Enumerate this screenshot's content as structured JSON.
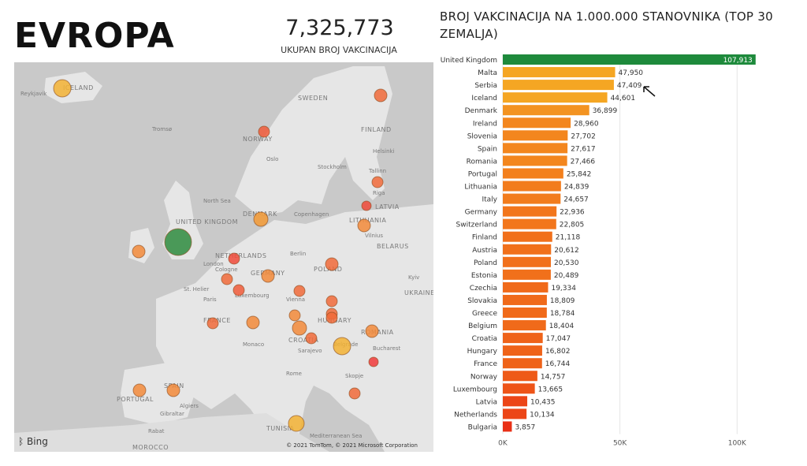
{
  "page": {
    "title": "EVROPA",
    "kpi_value": "7,325,773",
    "kpi_label": "UKUPAN BROJ VAKCINACIJA",
    "chart_title": "BROJ VAKCINACIJA NA 1.000.000 STANOVNIKA (TOP 30 ZEMALJA)"
  },
  "map": {
    "attribution": "Bing",
    "copyright": "© 2021 TomTom, © 2021 Microsoft Corporation",
    "labels": [
      "ICELAND",
      "Reykjavik",
      "SWEDEN",
      "FINLAND",
      "NORWAY",
      "Tromsø",
      "Oslo",
      "Stockholm",
      "Helsinki",
      "Tallinn",
      "Riga",
      "North Sea",
      "DENMARK",
      "Copenhagen",
      "UNITED KINGDOM",
      "NETHERLANDS",
      "London",
      "Berlin",
      "POLAND",
      "BELARUS",
      "GERMANY",
      "St. Helier",
      "Paris",
      "Luxembourg",
      "Vienna",
      "FRANCE",
      "HUNGARY",
      "ROMANIA",
      "Bucharest",
      "CROATIA",
      "Sarajevo",
      "Belgrade",
      "Monaco",
      "Rome",
      "Skopje",
      "SPAIN",
      "PORTUGAL",
      "Algiers",
      "TUNISIA",
      "Mediterranean Sea",
      "Rabat",
      "MOROCCO",
      "Gibraltar",
      "Kyiv",
      "UKRAINE",
      "LITHUANIA",
      "LATVIA",
      "Vilnius",
      "Cologne"
    ],
    "bubbles": [
      {
        "country": "United Kingdom",
        "color": "#2e8b3e"
      },
      {
        "country": "Iceland",
        "color": "#f2b134"
      },
      {
        "country": "Denmark",
        "color": "#f39a35"
      },
      {
        "country": "Ireland",
        "color": "#f2893a"
      },
      {
        "country": "Spain",
        "color": "#f2893a"
      },
      {
        "country": "Portugal",
        "color": "#f2893a"
      },
      {
        "country": "Serbia",
        "color": "#f2b134"
      },
      {
        "country": "Malta",
        "color": "#f2b134"
      },
      {
        "country": "Romania",
        "color": "#f2893a"
      },
      {
        "country": "Lithuania",
        "color": "#f2893a"
      },
      {
        "country": "Italy",
        "color": "#f2893a"
      },
      {
        "country": "Germany",
        "color": "#f2893a"
      },
      {
        "country": "Switzerland",
        "color": "#f2893a"
      },
      {
        "country": "Finland",
        "color": "#f06a3a"
      },
      {
        "country": "Austria",
        "color": "#f06a3a"
      },
      {
        "country": "Poland",
        "color": "#f06a3a"
      },
      {
        "country": "Estonia",
        "color": "#f06a3a"
      },
      {
        "country": "Czechia",
        "color": "#f06a3a"
      },
      {
        "country": "Slovakia",
        "color": "#f06a3a"
      },
      {
        "country": "Greece",
        "color": "#f06a3a"
      },
      {
        "country": "Belgium",
        "color": "#f06a3a"
      },
      {
        "country": "Croatia",
        "color": "#f06a3a"
      },
      {
        "country": "Hungary",
        "color": "#f06a3a"
      },
      {
        "country": "France",
        "color": "#f06a3a"
      },
      {
        "country": "Norway",
        "color": "#f05a3a"
      },
      {
        "country": "Luxembourg",
        "color": "#f05a3a"
      },
      {
        "country": "Latvia",
        "color": "#f04a3a"
      },
      {
        "country": "Netherlands",
        "color": "#f04a3a"
      },
      {
        "country": "Bulgaria",
        "color": "#f03a3a"
      },
      {
        "country": "Slovenia",
        "color": "#f2893a"
      }
    ]
  },
  "chart_data": {
    "type": "bar",
    "orientation": "horizontal",
    "title": "BROJ VAKCINACIJA NA 1.000.000 STANOVNIKA (TOP 30 ZEMALJA)",
    "categories": [
      "United Kingdom",
      "Malta",
      "Serbia",
      "Iceland",
      "Denmark",
      "Ireland",
      "Slovenia",
      "Spain",
      "Romania",
      "Portugal",
      "Lithuania",
      "Italy",
      "Germany",
      "Switzerland",
      "Finland",
      "Austria",
      "Poland",
      "Estonia",
      "Czechia",
      "Slovakia",
      "Greece",
      "Belgium",
      "Croatia",
      "Hungary",
      "France",
      "Norway",
      "Luxembourg",
      "Latvia",
      "Netherlands",
      "Bulgaria"
    ],
    "values": [
      107913,
      47950,
      47409,
      44601,
      36899,
      28960,
      27702,
      27617,
      27466,
      25842,
      24839,
      24657,
      22936,
      22805,
      21118,
      20612,
      20530,
      20489,
      19334,
      18809,
      18784,
      18404,
      17047,
      16802,
      16744,
      14757,
      13665,
      10435,
      10134,
      3857
    ],
    "value_labels": [
      "107,913",
      "47,950",
      "47,409",
      "44,601",
      "36,899",
      "28,960",
      "27,702",
      "27,617",
      "27,466",
      "25,842",
      "24,839",
      "24,657",
      "22,936",
      "22,805",
      "21,118",
      "20,612",
      "20,530",
      "20,489",
      "19,334",
      "18,809",
      "18,784",
      "18,404",
      "17,047",
      "16,802",
      "16,744",
      "14,757",
      "13,665",
      "10,435",
      "10,134",
      "3,857"
    ],
    "colors": [
      "#1e8a3c",
      "#f5a623",
      "#f5a623",
      "#f5a623",
      "#f39321",
      "#f3861e",
      "#f3861e",
      "#f3861e",
      "#f3861e",
      "#f3801d",
      "#f27c1d",
      "#f27c1d",
      "#f2761c",
      "#f2761c",
      "#f1701b",
      "#f1701b",
      "#f1701b",
      "#f1701b",
      "#f06a1a",
      "#f06a1a",
      "#f06a1a",
      "#f06a1a",
      "#ef6319",
      "#ef6319",
      "#ef6319",
      "#ee5a18",
      "#ee5418",
      "#ec4517",
      "#ec4517",
      "#e93016"
    ],
    "xlim": [
      0,
      110000
    ],
    "xticks": [
      0,
      50000,
      100000
    ],
    "xtick_labels": [
      "0K",
      "50K",
      "100K"
    ],
    "grid": true
  }
}
